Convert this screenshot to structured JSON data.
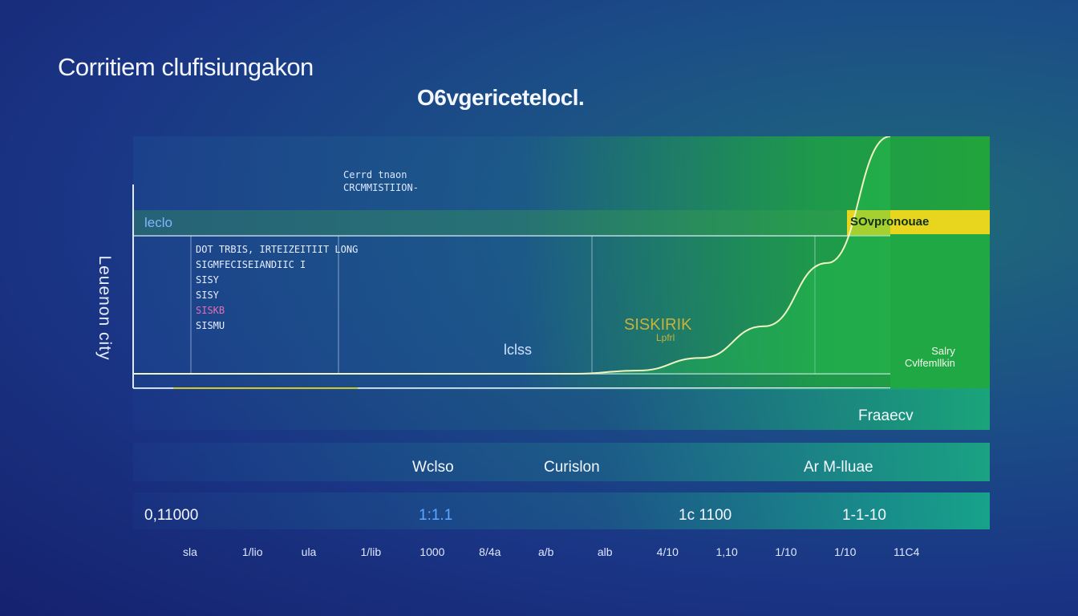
{
  "title": "Corritiem clufisiungakon",
  "subtitle": "O6vgericetelocl.",
  "colors": {
    "accent_green": "#22a43c",
    "accent_yellow": "#e8d51e",
    "line": "#f0f4c0",
    "background": "#1a3585"
  },
  "chart_data": {
    "type": "area",
    "title": "O6vgericetelocl.",
    "ylabel": "Leuenon city",
    "legend": "leclo",
    "grid": true,
    "legend_placement": "top-left",
    "x": [
      0,
      1,
      2,
      3,
      4,
      5,
      6,
      7,
      8,
      9,
      10,
      11,
      12
    ],
    "series": [
      {
        "values": [
          0,
          0,
          0,
          0,
          0,
          0,
          0,
          0,
          0.4,
          2,
          6,
          14,
          30
        ]
      }
    ],
    "xlim": [
      0,
      12
    ],
    "ylim": [
      0,
      30
    ],
    "annotations": {
      "top_note": [
        "Cerrd tnaon",
        "CRCMMISTIION-"
      ],
      "note_block": [
        "DOT TRBIS, IRTEIZEITIIT LONG",
        "SIGMFECISEIANDIIC I",
        "SISY",
        "SISY",
        "SISKB",
        "SISMU"
      ],
      "mid_label": "lclss",
      "series_label": "SISKIRIK",
      "series_label_sub": "Lpfrl",
      "top_right": "SOvpronouae",
      "side_label": [
        "Salry",
        "Cvlfemllkin"
      ]
    },
    "bottom_rows": {
      "frequency_label": "Fraaecv",
      "row2": [
        "Wclso",
        "Curislon",
        "Ar M-lluae"
      ],
      "row3": [
        "0,11000",
        "1:1.1",
        "1c 1100",
        "1-1-10"
      ]
    },
    "tick_labels": [
      "sla",
      "1/lio",
      "ula",
      "1/lib",
      "1000",
      "8/4a",
      "a/b",
      "alb",
      "4/10",
      "1,10",
      "1/10",
      "1/10",
      "11C4"
    ]
  }
}
